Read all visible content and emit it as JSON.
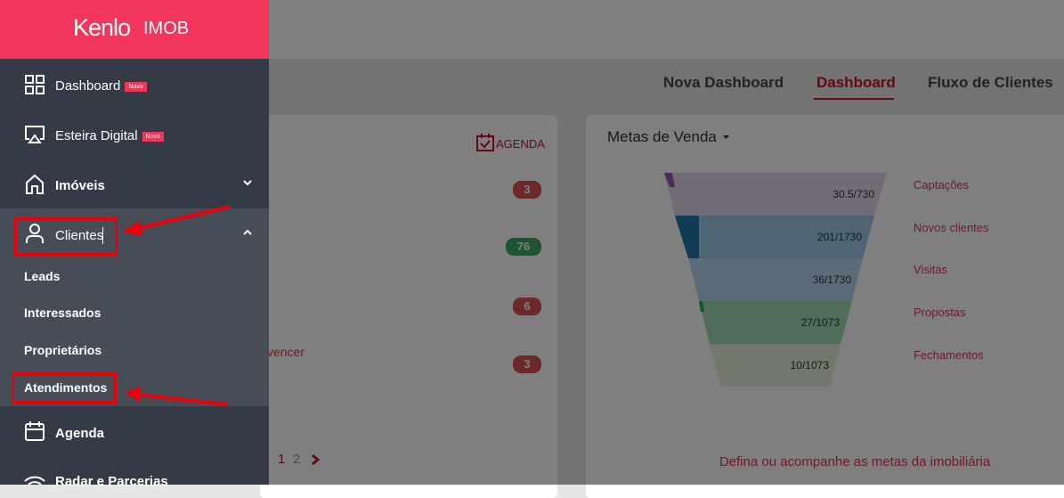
{
  "logo": {
    "brand": "Kenlo",
    "product": "IMOB"
  },
  "sidebar": {
    "items": [
      {
        "label": "Dashboard",
        "badge": "Novo"
      },
      {
        "label": "Esteira Digital",
        "badge": "Novo"
      },
      {
        "label": "Imóveis"
      },
      {
        "label": "Clientes",
        "subitems": [
          "Leads",
          "Interessados",
          "Proprietários",
          "Atendimentos"
        ]
      },
      {
        "label": "Agenda"
      },
      {
        "label": "Radar e Parcerias"
      }
    ]
  },
  "tabs": [
    "Nova Dashboard",
    "Dashboard",
    "Fluxo de Clientes"
  ],
  "left_card": {
    "agenda_link": "AGENDA",
    "badges": [
      3,
      76,
      6,
      3
    ],
    "partial_text": "vencer",
    "pages": [
      1,
      2
    ]
  },
  "goals": {
    "title": "Metas de Venda",
    "stages": [
      {
        "name": "Captações",
        "progress": "30.5/730"
      },
      {
        "name": "Novos clientes",
        "progress": "201/1730"
      },
      {
        "name": "Visitas",
        "progress": "36/1730"
      },
      {
        "name": "Propostas",
        "progress": "27/1073"
      },
      {
        "name": "Fechamentos",
        "progress": "10/1073"
      }
    ],
    "footer": "Defina ou acompanhe as metas da imobiliária"
  }
}
